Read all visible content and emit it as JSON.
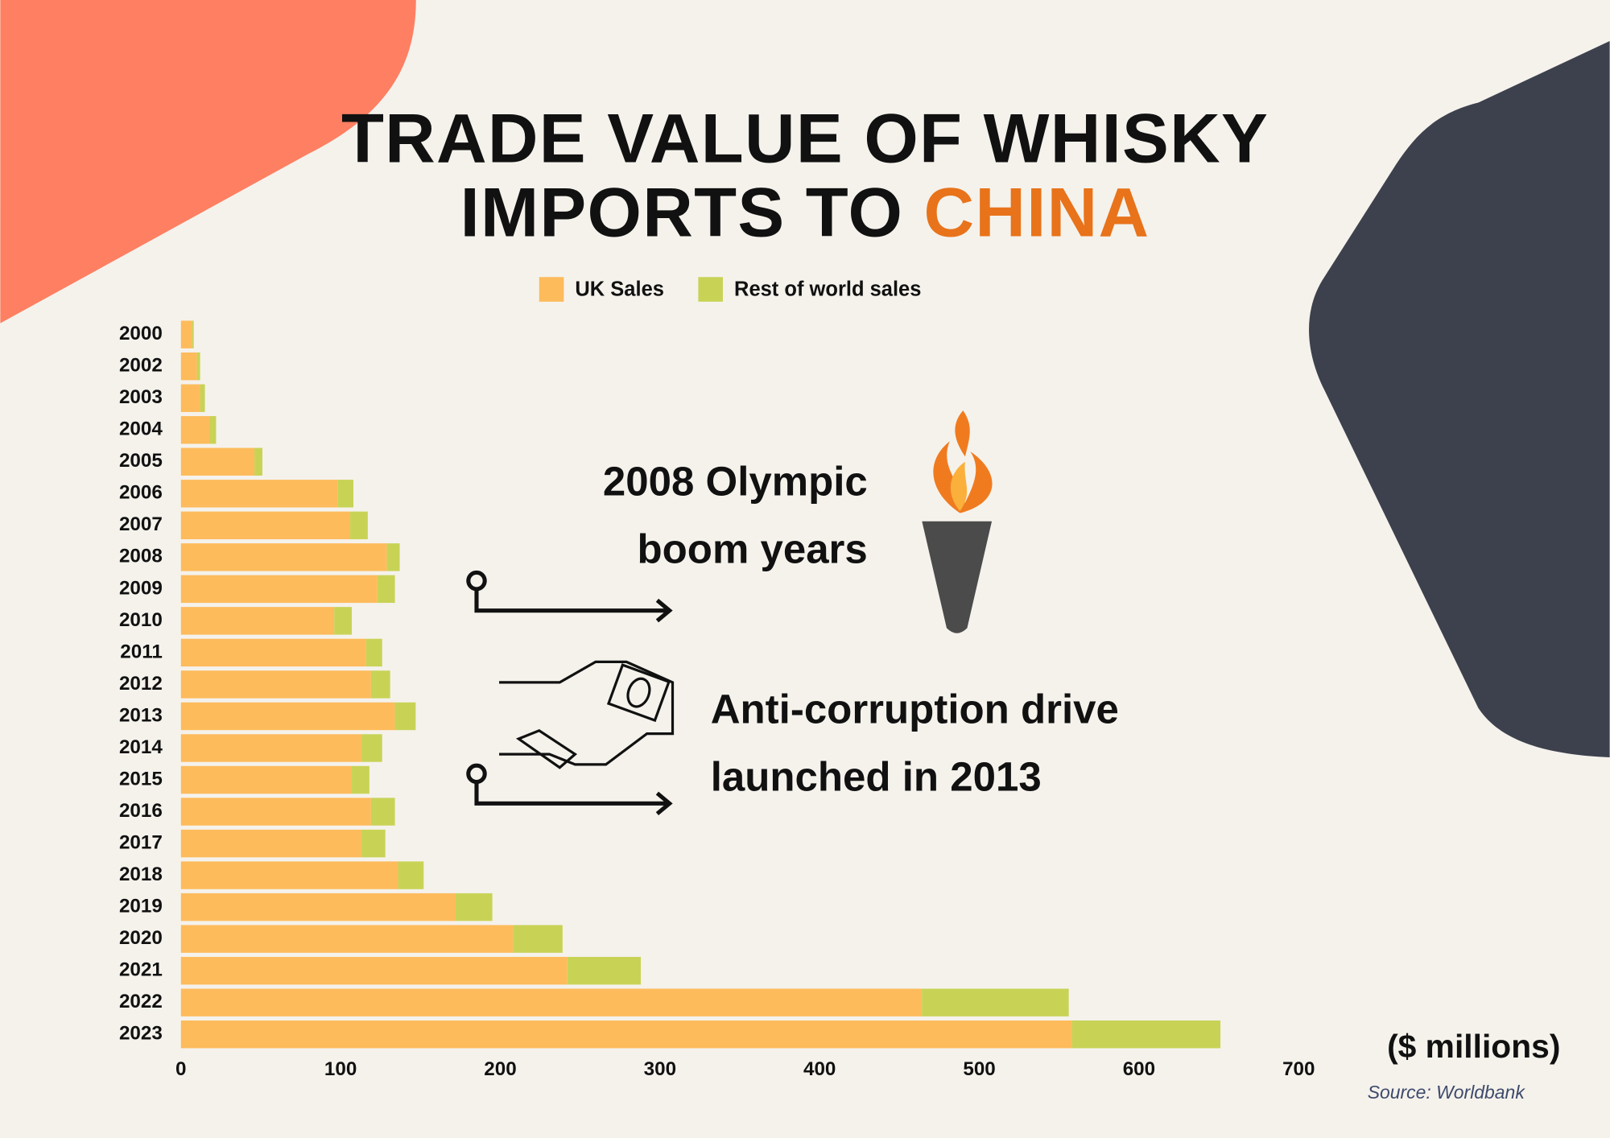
{
  "chart_data": {
    "type": "bar",
    "orientation": "horizontal",
    "stacked": true,
    "title": {
      "line1": "TRADE VALUE OF WHISKY",
      "line2": "IMPORTS TO",
      "highlight": "CHINA"
    },
    "categories": [
      "2000",
      "2002",
      "2003",
      "2004",
      "2005",
      "2006",
      "2007",
      "2008",
      "2009",
      "2010",
      "2011",
      "2012",
      "2013",
      "2014",
      "2015",
      "2016",
      "2017",
      "2018",
      "2019",
      "2020",
      "2021",
      "2022",
      "2023"
    ],
    "series": [
      {
        "name": "UK Sales",
        "color": "#fdbb5c",
        "values": [
          7,
          10,
          12,
          18,
          46,
          98,
          106,
          129,
          123,
          96,
          116,
          119,
          134,
          113,
          107,
          119,
          113,
          136,
          172,
          208,
          242,
          464,
          558
        ]
      },
      {
        "name": "Rest of world sales",
        "color": "#c8d356",
        "values": [
          1,
          2,
          3,
          4,
          5,
          10,
          11,
          8,
          11,
          11,
          10,
          12,
          13,
          13,
          11,
          15,
          15,
          16,
          23,
          31,
          46,
          92,
          93
        ]
      }
    ],
    "xlim": [
      0,
      700
    ],
    "xticks": [
      0,
      100,
      200,
      300,
      400,
      500,
      600,
      700
    ],
    "x_label": "($ millions)",
    "source": "Source: Worldbank",
    "grid": false,
    "annotations": [
      {
        "lines": [
          "2008 Olympic",
          "boom years"
        ]
      },
      {
        "lines": [
          "Anti-corruption drive",
          "launched in 2013"
        ]
      }
    ]
  }
}
